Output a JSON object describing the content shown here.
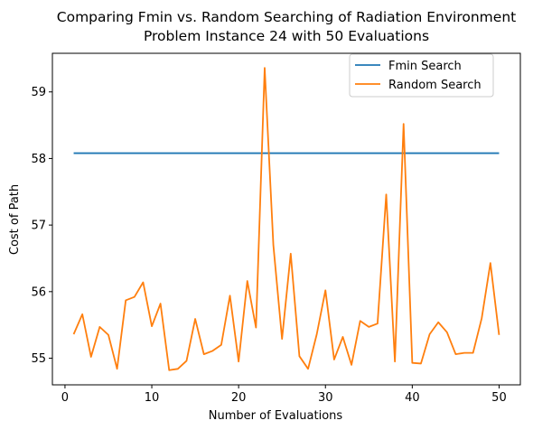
{
  "chart_data": {
    "type": "line",
    "title": "Comparing Fmin vs. Random Searching of Radiation Environment",
    "subtitle": "Problem Instance 24 with 50 Evaluations",
    "xlabel": "Number of Evaluations",
    "ylabel": "Cost of Path",
    "xlim": [
      -1.45,
      52.45
    ],
    "ylim": [
      54.6,
      59.58
    ],
    "xticks": [
      0,
      10,
      20,
      30,
      40,
      50
    ],
    "yticks": [
      55,
      56,
      57,
      58,
      59
    ],
    "grid": false,
    "legend_position": "top-right",
    "x": [
      1,
      2,
      3,
      4,
      5,
      6,
      7,
      8,
      9,
      10,
      11,
      12,
      13,
      14,
      15,
      16,
      17,
      18,
      19,
      20,
      21,
      22,
      23,
      24,
      25,
      26,
      27,
      28,
      29,
      30,
      31,
      32,
      33,
      34,
      35,
      36,
      37,
      38,
      39,
      40,
      41,
      42,
      43,
      44,
      45,
      46,
      47,
      48,
      49,
      50
    ],
    "series": [
      {
        "name": "Fmin Search",
        "color": "#1f77b4",
        "values": [
          58.08,
          58.08,
          58.08,
          58.08,
          58.08,
          58.08,
          58.08,
          58.08,
          58.08,
          58.08,
          58.08,
          58.08,
          58.08,
          58.08,
          58.08,
          58.08,
          58.08,
          58.08,
          58.08,
          58.08,
          58.08,
          58.08,
          58.08,
          58.08,
          58.08,
          58.08,
          58.08,
          58.08,
          58.08,
          58.08,
          58.08,
          58.08,
          58.08,
          58.08,
          58.08,
          58.08,
          58.08,
          58.08,
          58.08,
          58.08,
          58.08,
          58.08,
          58.08,
          58.08,
          58.08,
          58.08,
          58.08,
          58.08,
          58.08,
          58.08
        ]
      },
      {
        "name": "Random Search",
        "color": "#ff7f0e",
        "values": [
          55.36,
          55.66,
          55.02,
          55.47,
          55.35,
          54.84,
          55.87,
          55.92,
          56.14,
          55.48,
          55.82,
          54.82,
          54.84,
          54.96,
          55.59,
          55.06,
          55.11,
          55.2,
          55.94,
          54.95,
          56.16,
          55.46,
          59.36,
          56.7,
          55.29,
          56.57,
          55.03,
          54.84,
          55.36,
          56.02,
          54.98,
          55.32,
          54.9,
          55.56,
          55.47,
          55.52,
          57.46,
          54.95,
          58.52,
          54.93,
          54.92,
          55.36,
          55.54,
          55.39,
          55.06,
          55.08,
          55.08,
          55.6,
          56.43,
          55.35
        ]
      }
    ]
  }
}
